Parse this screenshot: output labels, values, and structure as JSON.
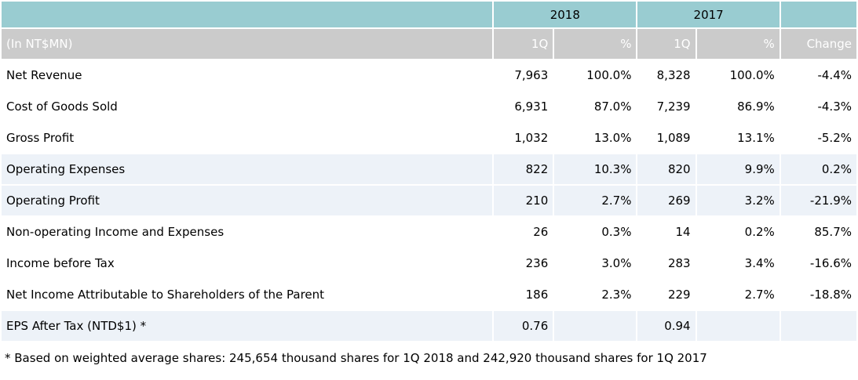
{
  "colors": {
    "year_header_bg": "#99ccd1",
    "subheader_bg": "#cbcbcb",
    "subheader_text": "#ffffff",
    "shaded_row_bg": "#edf2f8",
    "body_text": "#000000"
  },
  "table": {
    "unit_label": "(In NT$MN)",
    "year_2018": "2018",
    "year_2017": "2017",
    "sub_headers": {
      "q1_2018": "1Q",
      "pct_2018": "%",
      "q1_2017": "1Q",
      "pct_2017": "%",
      "change": "Change"
    },
    "rows": [
      {
        "label": "Net Revenue",
        "values": [
          "7,963",
          "100.0%",
          "8,328",
          "100.0%",
          "-4.4%"
        ]
      },
      {
        "label": "Cost of Goods Sold",
        "values": [
          "6,931",
          "87.0%",
          "7,239",
          "86.9%",
          "-4.3%"
        ]
      },
      {
        "label": "Gross Profit",
        "values": [
          "1,032",
          "13.0%",
          "1,089",
          "13.1%",
          "-5.2%"
        ]
      },
      {
        "label": "Operating Expenses",
        "values": [
          "822",
          "10.3%",
          "820",
          "9.9%",
          "0.2%"
        ]
      },
      {
        "label": "Operating Profit",
        "values": [
          "210",
          "2.7%",
          "269",
          "3.2%",
          "-21.9%"
        ]
      },
      {
        "label": "Non-operating Income and Expenses",
        "values": [
          "26",
          "0.3%",
          "14",
          "0.2%",
          "85.7%"
        ]
      },
      {
        "label": "Income before Tax",
        "values": [
          "236",
          "3.0%",
          "283",
          "3.4%",
          "-16.6%"
        ]
      },
      {
        "label": "Net Income Attributable to Shareholders of the Parent",
        "values": [
          "186",
          "2.3%",
          "229",
          "2.7%",
          "-18.8%"
        ]
      },
      {
        "label": "EPS After Tax (NTD$1) *",
        "values": [
          "0.76",
          "",
          "0.94",
          "",
          ""
        ]
      }
    ],
    "footnote": "* Based on weighted average shares: 245,654 thousand shares for 1Q 2018 and 242,920 thousand shares for 1Q 2017"
  }
}
